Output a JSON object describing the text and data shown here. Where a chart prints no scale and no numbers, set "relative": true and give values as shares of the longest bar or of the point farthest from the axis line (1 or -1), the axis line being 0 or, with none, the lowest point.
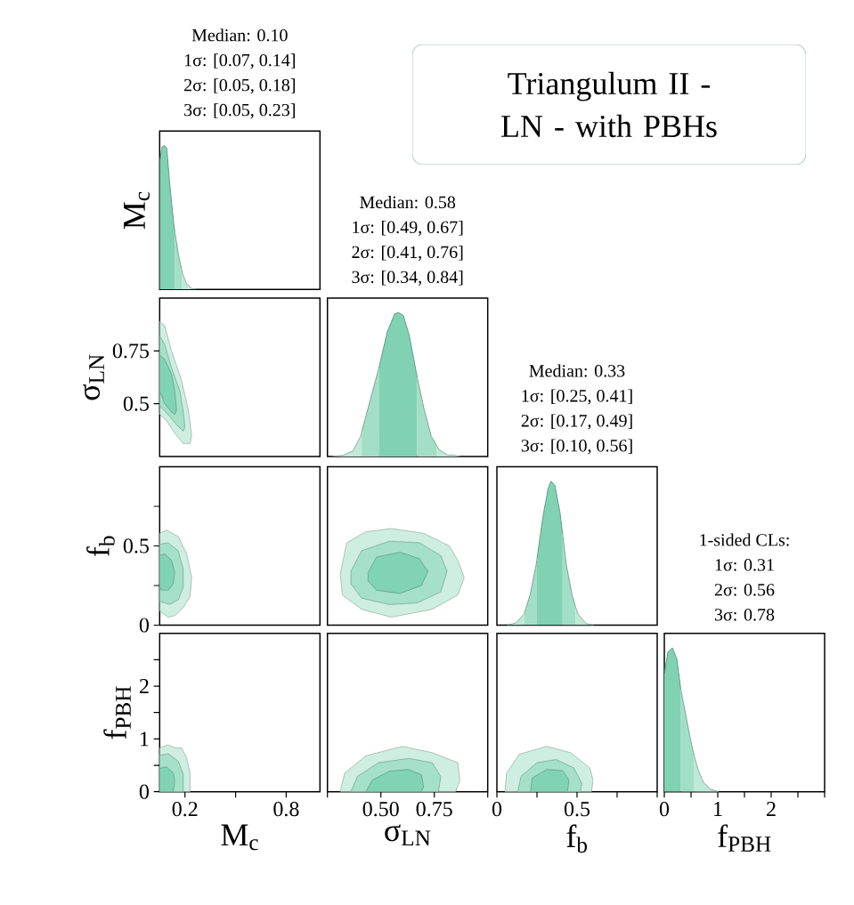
{
  "chart_data": [
    {
      "type": "area",
      "title": "Median: 0.10",
      "annotations": [
        "1σ: [0.07, 0.14]",
        "2σ: [0.05, 0.18]",
        "3σ: [0.05, 0.23]"
      ],
      "ylabel": "M$_{c}$",
      "relative": true,
      "xlim": [
        0.05,
        1.0
      ],
      "tick_labels": false,
      "series": [
        {
          "color": "#bfe9d8",
          "x": [
            0.18,
            0.186,
            0.209,
            0.23,
            0.234,
            0.265
          ],
          "values": [
            0.14,
            0.11,
            0.04,
            0.02,
            0.01,
            0
          ]
        },
        {
          "color": "#a3dfc7",
          "x": [
            0.14,
            0.16,
            0.18
          ],
          "values": [
            0.4,
            0.25,
            0.14
          ]
        },
        {
          "color": "#80d2b3",
          "x": [
            0.05,
            0.064,
            0.079,
            0.092,
            0.11,
            0.133,
            0.14
          ],
          "values": [
            0.89,
            0.99,
            1,
            0.98,
            0.73,
            0.46,
            0.4
          ]
        }
      ]
    },
    {
      "type": "other",
      "title": "Triangulum II - LN - with PBHs"
    },
    {
      "type": "area",
      "ylabel": "σ$_{LN}$",
      "xlim": [
        0.05,
        1.0
      ],
      "ylim": [
        0.25,
        1.0
      ],
      "yticks": [
        0.5,
        0.75
      ],
      "tick_labels": "y",
      "series": [
        {
          "color": "#cdeee1",
          "x": [
            0.05,
            0.08,
            0.12,
            0.18,
            0.22,
            0.24,
            0.23,
            0.19,
            0.14,
            0.09,
            0.05
          ],
          "values": [
            0.89,
            0.87,
            0.75,
            0.61,
            0.47,
            0.35,
            0.31,
            0.31,
            0.36,
            0.42,
            0.45
          ]
        },
        {
          "color": "#a5e0c9",
          "x": [
            0.05,
            0.08,
            0.12,
            0.17,
            0.19,
            0.2,
            0.19,
            0.15,
            0.11,
            0.05
          ],
          "values": [
            0.82,
            0.78,
            0.67,
            0.56,
            0.46,
            0.39,
            0.37,
            0.4,
            0.44,
            0.49
          ]
        },
        {
          "color": "#80d3b4",
          "x": [
            0.05,
            0.08,
            0.12,
            0.14,
            0.15,
            0.14,
            0.12,
            0.08,
            0.05
          ],
          "values": [
            0.73,
            0.71,
            0.64,
            0.56,
            0.47,
            0.45,
            0.46,
            0.5,
            0.56
          ]
        }
      ]
    },
    {
      "type": "area",
      "title": "Median: 0.58",
      "annotations": [
        "1σ: [0.49, 0.67]",
        "2σ: [0.41, 0.76]",
        "3σ: [0.34, 0.84]"
      ],
      "relative": true,
      "xlim": [
        0.25,
        1.0
      ],
      "tick_labels": false,
      "series": [
        {
          "color": "#bfe9d8",
          "x": [
            0.273,
            0.329,
            0.34,
            0.37,
            0.405,
            0.41
          ],
          "values": [
            0,
            0.01,
            0.02,
            0.04,
            0.14,
            0.17
          ]
        },
        {
          "color": "#bfe9d8",
          "x": [
            0.76,
            0.771,
            0.812,
            0.84,
            0.868
          ],
          "values": [
            0.08,
            0.05,
            0.01,
            0.01,
            0
          ]
        },
        {
          "color": "#a3dfc7",
          "x": [
            0.41,
            0.439,
            0.488,
            0.49
          ],
          "values": [
            0.17,
            0.33,
            0.6,
            0.61
          ]
        },
        {
          "color": "#a3dfc7",
          "x": [
            0.67,
            0.702,
            0.736,
            0.76
          ],
          "values": [
            0.55,
            0.33,
            0.14,
            0.08
          ]
        },
        {
          "color": "#80d2b3",
          "x": [
            0.49,
            0.529,
            0.564,
            0.582,
            0.605,
            0.633,
            0.67
          ],
          "values": [
            0.61,
            0.86,
            0.99,
            1,
            0.98,
            0.84,
            0.55
          ]
        }
      ]
    },
    {
      "type": "area",
      "ylabel": "f$_{b}$",
      "xlim": [
        0.05,
        1.0
      ],
      "ylim": [
        0,
        1.0
      ],
      "yticks": [
        0,
        {
          "value": 0.25,
          "label": null
        },
        0.5,
        {
          "value": 0.75,
          "label": null
        }
      ],
      "tick_labels": "y",
      "series": [
        {
          "color": "#cdeee1",
          "x": [
            0.05,
            0.09,
            0.16,
            0.21,
            0.24,
            0.23,
            0.19,
            0.14,
            0.1,
            0.05
          ],
          "values": [
            0.58,
            0.6,
            0.56,
            0.45,
            0.3,
            0.18,
            0.11,
            0.06,
            0.05,
            0.09
          ]
        },
        {
          "color": "#a5e0c9",
          "x": [
            0.05,
            0.1,
            0.16,
            0.19,
            0.19,
            0.16,
            0.11,
            0.05
          ],
          "values": [
            0.51,
            0.52,
            0.47,
            0.35,
            0.24,
            0.16,
            0.13,
            0.15
          ]
        },
        {
          "color": "#80d3b4",
          "x": [
            0.05,
            0.08,
            0.12,
            0.14,
            0.13,
            0.1,
            0.06,
            0.05
          ],
          "values": [
            0.44,
            0.45,
            0.41,
            0.33,
            0.26,
            0.22,
            0.22,
            0.24
          ]
        }
      ]
    },
    {
      "type": "area",
      "xlim": [
        0.25,
        1.0
      ],
      "ylim": [
        0,
        1.0
      ],
      "tick_labels": false,
      "series": [
        {
          "color": "#cdeee1",
          "x": [
            0.31,
            0.34,
            0.43,
            0.55,
            0.7,
            0.82,
            0.86,
            0.89,
            0.86,
            0.74,
            0.55,
            0.41,
            0.32
          ],
          "values": [
            0.32,
            0.52,
            0.59,
            0.61,
            0.58,
            0.5,
            0.41,
            0.3,
            0.19,
            0.1,
            0.05,
            0.1,
            0.19
          ]
        },
        {
          "color": "#a5e0c9",
          "x": [
            0.36,
            0.41,
            0.54,
            0.68,
            0.78,
            0.81,
            0.78,
            0.67,
            0.54,
            0.41,
            0.36
          ],
          "values": [
            0.34,
            0.47,
            0.53,
            0.52,
            0.44,
            0.34,
            0.21,
            0.14,
            0.13,
            0.17,
            0.26
          ]
        },
        {
          "color": "#80d3b4",
          "x": [
            0.44,
            0.48,
            0.59,
            0.68,
            0.72,
            0.69,
            0.59,
            0.48,
            0.44
          ],
          "values": [
            0.33,
            0.43,
            0.46,
            0.42,
            0.34,
            0.25,
            0.2,
            0.22,
            0.28
          ]
        }
      ]
    },
    {
      "type": "area",
      "title": "Median: 0.33",
      "annotations": [
        "1σ: [0.25, 0.41]",
        "2σ: [0.17, 0.49]",
        "3σ: [0.10, 0.56]"
      ],
      "relative": true,
      "xlim": [
        0,
        1.0
      ],
      "tick_labels": false,
      "series": [
        {
          "color": "#bfe9d8",
          "x": [
            0.064,
            0.1,
            0.117,
            0.17
          ],
          "values": [
            0,
            0.01,
            0.014,
            0.078
          ]
        },
        {
          "color": "#bfe9d8",
          "x": [
            0.49,
            0.505,
            0.554,
            0.56,
            0.607
          ],
          "values": [
            0.13,
            0.078,
            0.014,
            0.01,
            0
          ]
        },
        {
          "color": "#a3dfc7",
          "x": [
            0.17,
            0.207,
            0.245,
            0.25
          ],
          "values": [
            0.078,
            0.21,
            0.42,
            0.46
          ]
        },
        {
          "color": "#a3dfc7",
          "x": [
            0.41,
            0.433,
            0.469,
            0.49
          ],
          "values": [
            0.63,
            0.42,
            0.21,
            0.13
          ]
        },
        {
          "color": "#80d2b3",
          "x": [
            0.25,
            0.288,
            0.32,
            0.337,
            0.362,
            0.394,
            0.41
          ],
          "values": [
            0.46,
            0.76,
            0.95,
            1,
            0.97,
            0.78,
            0.63
          ]
        }
      ]
    },
    {
      "type": "area",
      "ylabel": "f$_{PBH}$",
      "xlabel": "M$_{c}$",
      "xlim": [
        0.05,
        1.0
      ],
      "ylim": [
        0,
        3
      ],
      "xticks": [
        0.2,
        {
          "value": 0.5,
          "label": null
        },
        0.8
      ],
      "yticks": [
        0,
        {
          "value": 0.5,
          "label": null
        },
        1,
        {
          "value": 1.5,
          "label": null
        },
        2,
        {
          "value": 2.5,
          "label": null
        }
      ],
      "series": [
        {
          "color": "#cdeee1",
          "x": [
            0.05,
            0.1,
            0.14,
            0.18,
            0.21,
            0.23,
            0.23,
            0.05
          ],
          "values": [
            0.83,
            0.89,
            0.83,
            0.83,
            0.64,
            0.36,
            0,
            0
          ]
        },
        {
          "color": "#a5e0c9",
          "x": [
            0.05,
            0.1,
            0.16,
            0.19,
            0.19,
            0.05
          ],
          "values": [
            0.69,
            0.72,
            0.58,
            0.33,
            0,
            0
          ]
        },
        {
          "color": "#80d3b4",
          "x": [
            0.05,
            0.09,
            0.13,
            0.14,
            0.13,
            0.05
          ],
          "values": [
            0.44,
            0.47,
            0.36,
            0.19,
            0,
            0
          ]
        }
      ]
    },
    {
      "type": "area",
      "xlabel": "σ$_{LN}$",
      "xlim": [
        0.25,
        1.0
      ],
      "ylim": [
        0,
        3
      ],
      "xticks": [
        {
          "value": 0.25,
          "label": null
        },
        {
          "value": 0.5,
          "label": "0.50"
        },
        0.75,
        {
          "value": 1.0,
          "label": null
        }
      ],
      "tick_labels": "x",
      "series": [
        {
          "color": "#cdeee1",
          "x": [
            0.31,
            0.33,
            0.43,
            0.6,
            0.74,
            0.86,
            0.87,
            0.85
          ],
          "values": [
            0,
            0.35,
            0.68,
            0.86,
            0.74,
            0.55,
            0.22,
            0
          ]
        },
        {
          "color": "#a5e0c9",
          "x": [
            0.36,
            0.39,
            0.49,
            0.63,
            0.74,
            0.78,
            0.77
          ],
          "values": [
            0,
            0.29,
            0.55,
            0.63,
            0.55,
            0.29,
            0
          ]
        },
        {
          "color": "#80d3b4",
          "x": [
            0.43,
            0.46,
            0.54,
            0.63,
            0.69,
            0.7,
            0.69
          ],
          "values": [
            0,
            0.22,
            0.39,
            0.42,
            0.32,
            0.09,
            0
          ]
        }
      ]
    },
    {
      "type": "area",
      "xlabel": "f$_{b}$",
      "xlim": [
        0,
        1.0
      ],
      "ylim": [
        0,
        3
      ],
      "xticks": [
        0,
        {
          "value": 0.25,
          "label": null
        },
        0.5,
        {
          "value": 0.75,
          "label": null
        },
        {
          "value": 1.0,
          "label": null
        }
      ],
      "tick_labels": "x",
      "series": [
        {
          "color": "#cdeee1",
          "x": [
            0.05,
            0.06,
            0.14,
            0.31,
            0.46,
            0.58,
            0.6,
            0.59
          ],
          "values": [
            0,
            0.35,
            0.71,
            0.86,
            0.74,
            0.45,
            0.22,
            0
          ]
        },
        {
          "color": "#a5e0c9",
          "x": [
            0.13,
            0.15,
            0.25,
            0.37,
            0.48,
            0.53,
            0.52
          ],
          "values": [
            0,
            0.29,
            0.55,
            0.61,
            0.45,
            0.16,
            0
          ]
        },
        {
          "color": "#80d3b4",
          "x": [
            0.21,
            0.22,
            0.31,
            0.41,
            0.45,
            0.44
          ],
          "values": [
            0,
            0.26,
            0.42,
            0.4,
            0.22,
            0
          ]
        }
      ]
    },
    {
      "type": "area",
      "title": "1-sided CLs:",
      "annotations": [
        "1σ: 0.31",
        "2σ: 0.56",
        "3σ: 0.78"
      ],
      "xlabel": "f$_{PBH}$",
      "relative": true,
      "xlim": [
        0,
        3
      ],
      "xticks": [
        0,
        {
          "value": 0.5,
          "label": null
        },
        1,
        {
          "value": 1.5,
          "label": null
        },
        2,
        {
          "value": 2.5,
          "label": null
        },
        {
          "value": 3,
          "label": null
        }
      ],
      "tick_labels": "x",
      "series": [
        {
          "color": "#bfe9d8",
          "x": [
            0.56,
            0.626,
            0.737,
            0.78,
            0.849,
            1.017
          ],
          "values": [
            0.25,
            0.16,
            0.06,
            0.05,
            0.02,
            0
          ]
        },
        {
          "color": "#a3dfc7",
          "x": [
            0.31,
            0.402,
            0.514,
            0.56
          ],
          "values": [
            0.71,
            0.53,
            0.32,
            0.25
          ]
        },
        {
          "color": "#80d2b3",
          "x": [
            0.0,
            0.067,
            0.151,
            0.235,
            0.302,
            0.31
          ],
          "values": [
            0.82,
            0.97,
            1,
            0.92,
            0.73,
            0.71
          ]
        }
      ]
    }
  ]
}
